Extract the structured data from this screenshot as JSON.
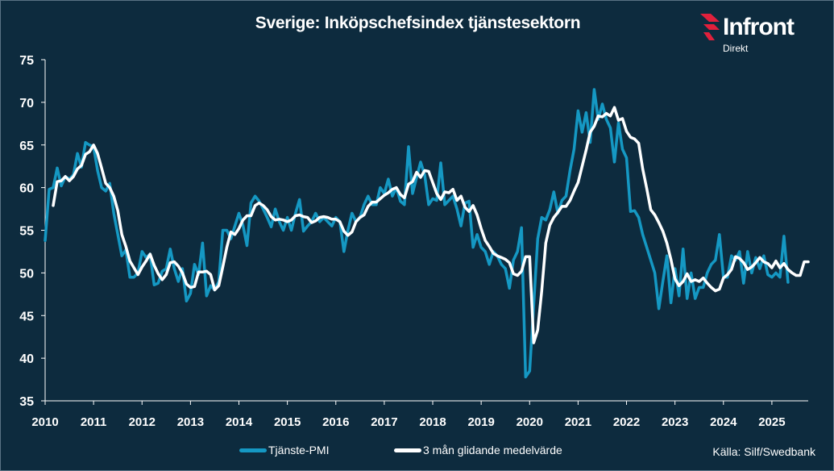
{
  "title": "Sverige: Inköpschefsindex tjänstesektorn",
  "logo": {
    "word": "Infront",
    "sub": "Direkt",
    "accent": "#e0203c"
  },
  "source": "Källa:  Silf/Swedbank",
  "colors": {
    "background": "#0d2b3e",
    "pmi": "#1598c3",
    "ma": "#ffffff"
  },
  "chart_data": {
    "type": "line",
    "title": "Sverige: Inköpschefsindex tjänstesektorn",
    "ylim": [
      35,
      75
    ],
    "yticks": [
      35,
      40,
      45,
      50,
      55,
      60,
      65,
      70,
      75
    ],
    "xlim": [
      2010,
      2025.75
    ],
    "xticks": [
      "2010",
      "2011",
      "2012",
      "2013",
      "2014",
      "2015",
      "2016",
      "2017",
      "2018",
      "2019",
      "2020",
      "2021",
      "2022",
      "2023",
      "2024",
      "2025"
    ],
    "grid": false,
    "legend_position": "bottom",
    "series": [
      {
        "name": "Tjänste-PMI",
        "color": "#1598c3",
        "start": "2010-01",
        "values": [
          53.8,
          59.8,
          60.0,
          62.3,
          60.2,
          61.3,
          61.0,
          61.5,
          64.0,
          62.4,
          65.3,
          65.0,
          64.8,
          62.0,
          60.0,
          59.6,
          60.5,
          57.0,
          54.5,
          52.0,
          52.7,
          49.5,
          49.5,
          50.0,
          52.5,
          51.8,
          52.2,
          48.6,
          48.8,
          50.2,
          50.5,
          52.8,
          50.5,
          49.0,
          50.5,
          46.7,
          47.6,
          51.0,
          49.8,
          53.5,
          47.3,
          48.5,
          48.0,
          49.0,
          55.0,
          55.0,
          54.0,
          55.5,
          57.0,
          55.6,
          53.2,
          58.2,
          59.0,
          58.4,
          57.5,
          56.5,
          55.4,
          57.5,
          56.0,
          55.0,
          56.5,
          55.0,
          57.0,
          58.6,
          54.9,
          55.5,
          56.0,
          57.0,
          56.0,
          56.5,
          56.0,
          55.5,
          56.5,
          56.0,
          52.5,
          55.0,
          57.0,
          56.0,
          56.5,
          58.0,
          59.0,
          58.0,
          58.0,
          60.0,
          59.3,
          61.0,
          59.0,
          60.0,
          58.4,
          58.0,
          64.8,
          59.3,
          61.2,
          63.0,
          61.5,
          58.0,
          58.7,
          58.5,
          62.9,
          58.0,
          58.5,
          59.0,
          57.5,
          55.5,
          58.2,
          58.4,
          53.0,
          54.5,
          53.0,
          52.5,
          51.0,
          52.5,
          52.0,
          51.0,
          50.5,
          48.2,
          51.5,
          52.5,
          55.3,
          37.8,
          38.5,
          46.2,
          54.0,
          56.5,
          56.2,
          57.4,
          59.5,
          57.0,
          58.5,
          59.0,
          62.0,
          64.5,
          69.0,
          66.5,
          68.8,
          65.3,
          71.5,
          68.0,
          69.8,
          68.0,
          67.0,
          63.0,
          67.6,
          64.5,
          63.5,
          57.2,
          57.3,
          56.5,
          54.5,
          53.0,
          51.5,
          50.0,
          45.8,
          49.0,
          52.0,
          46.5,
          50.5,
          47.3,
          52.8,
          47.0,
          50.0,
          47.0,
          48.3,
          48.3,
          50.0,
          51.0,
          51.5,
          54.5,
          49.5,
          49.5,
          52.0,
          51.5,
          52.5,
          48.8,
          52.5,
          50.0,
          51.8,
          50.5,
          52.0,
          49.8,
          49.5,
          50.0,
          49.5,
          54.3,
          48.9
        ]
      },
      {
        "name": "3 mån glidande medelvärde",
        "color": "#ffffff",
        "start": "2010-03",
        "values": [
          57.9,
          60.7,
          60.8,
          61.3,
          60.8,
          61.3,
          62.2,
          62.6,
          63.9,
          64.2,
          65.0,
          64.0,
          62.3,
          60.5,
          60.0,
          59.0,
          57.3,
          54.5,
          53.1,
          51.4,
          50.6,
          49.8,
          50.7,
          51.4,
          52.2,
          50.9,
          49.9,
          49.2,
          49.8,
          51.2,
          51.3,
          50.8,
          50.0,
          48.7,
          48.3,
          48.4,
          50.1,
          50.1,
          50.2,
          49.8,
          48.0,
          48.5,
          50.7,
          53.0,
          54.8,
          54.5,
          55.2,
          56.2,
          56.7,
          56.7,
          57.9,
          58.2,
          57.9,
          57.4,
          56.6,
          56.2,
          56.3,
          56.2,
          56.0,
          56.2,
          56.7,
          56.8,
          56.6,
          56.5,
          55.9,
          56.1,
          56.5,
          56.6,
          56.5,
          56.3,
          56.3,
          56.0,
          54.9,
          54.4,
          54.8,
          56.0,
          56.5,
          56.8,
          57.8,
          58.3,
          58.3,
          58.7,
          59.1,
          59.4,
          59.8,
          60.0,
          59.2,
          58.8,
          60.4,
          60.7,
          61.8,
          61.2,
          62.0,
          61.9,
          60.6,
          59.3,
          58.6,
          59.5,
          59.4,
          59.8,
          58.5,
          59.0,
          57.7,
          57.2,
          57.9,
          56.8,
          55.2,
          53.8,
          53.1,
          52.3,
          52.0,
          51.8,
          51.6,
          51.2,
          49.9,
          49.7,
          50.2,
          51.9,
          51.9,
          41.8,
          43.3,
          47.9,
          53.5,
          55.6,
          56.5,
          57.1,
          57.8,
          57.8,
          58.5,
          59.6,
          60.6,
          62.5,
          64.4,
          66.5,
          67.2,
          68.4,
          68.3,
          68.7,
          68.4,
          69.4,
          67.9,
          68.1,
          66.6,
          65.9,
          65.7,
          65.2,
          62.2,
          59.9,
          57.4,
          56.8,
          55.9,
          54.9,
          53.5,
          51.6,
          49.3,
          48.5,
          49.0,
          49.9,
          49.0,
          49.2,
          49.0,
          49.4,
          48.8,
          48.3,
          47.9,
          48.1,
          49.4,
          49.8,
          50.4,
          51.9,
          51.7,
          51.2,
          50.4,
          50.7,
          51.2,
          51.8,
          51.3,
          51.1,
          50.6,
          51.4,
          50.6,
          51.1,
          50.4,
          50.0,
          49.7,
          49.7,
          51.3,
          51.3
        ]
      }
    ]
  }
}
